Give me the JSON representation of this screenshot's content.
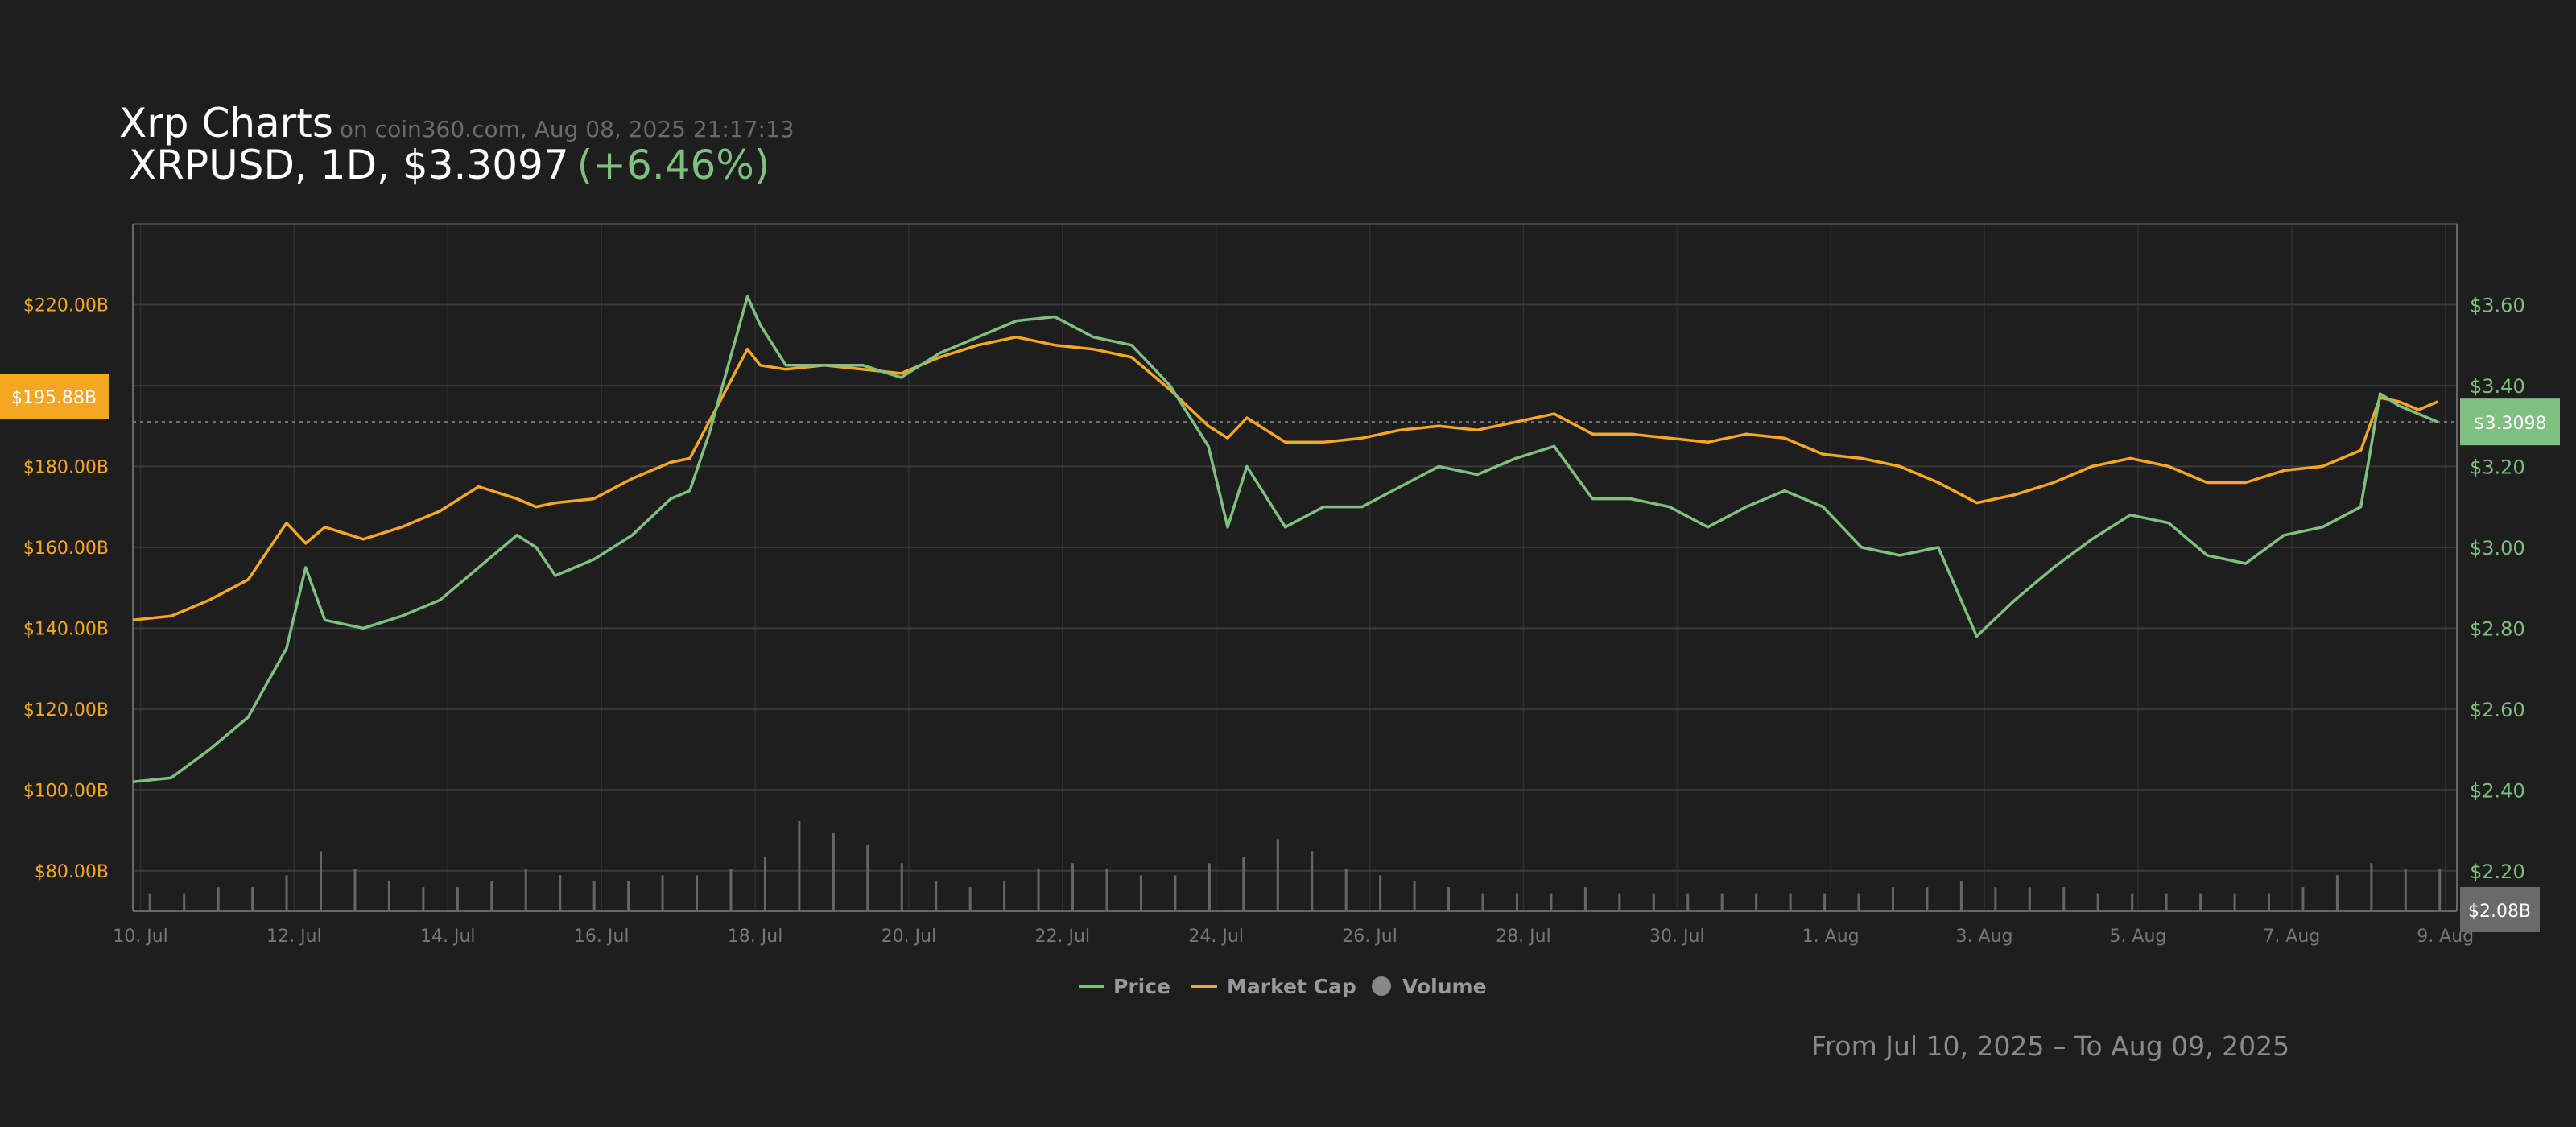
{
  "header": {
    "title": "Xrp Charts",
    "source": "on coin360.com, Aug 08, 2025 21:17:13",
    "pair_info": "XRPUSD, 1D, $3.3097",
    "change": "(+6.46%)"
  },
  "footer": {
    "range": "From Jul 10, 2025 – To Aug 09, 2025"
  },
  "colors": {
    "background": "#1e1e1e",
    "grid": "#3a3a3a",
    "price": "#7fbf7f",
    "market_cap": "#f5a623",
    "volume": "#666666",
    "axis_text_left": "#f5a623",
    "axis_text_right": "#7fbf7f",
    "axis_text_bottom": "#777777"
  },
  "chart_data": {
    "type": "line",
    "x_ticks": [
      "10. Jul",
      "12. Jul",
      "14. Jul",
      "16. Jul",
      "18. Jul",
      "20. Jul",
      "22. Jul",
      "24. Jul",
      "26. Jul",
      "28. Jul",
      "30. Jul",
      "1. Aug",
      "3. Aug",
      "5. Aug",
      "7. Aug",
      "9. Aug"
    ],
    "x_range": [
      "2025-07-10",
      "2025-08-09"
    ],
    "y_left": {
      "label": "Market Cap",
      "ticks": [
        "$220.00B",
        "$180.00B",
        "$160.00B",
        "$140.00B",
        "$120.00B",
        "$100.00B",
        "$80.00B"
      ],
      "ylim": [
        70,
        240
      ]
    },
    "y_right": {
      "label": "Price",
      "ticks": [
        "$3.60",
        "$3.40",
        "$3.20",
        "$3.00",
        "$2.80",
        "$2.60",
        "$2.40",
        "$2.20"
      ],
      "ylim": [
        2.1,
        3.8
      ]
    },
    "current_market_cap_label": "$195.88B",
    "current_price_label": "$3.3098",
    "current_volume_label": "$2.08B",
    "series": [
      {
        "name": "Price",
        "axis": "right",
        "x": [
          "2025-07-10",
          "2025-07-10T12",
          "2025-07-11",
          "2025-07-11T12",
          "2025-07-12",
          "2025-07-12T06",
          "2025-07-12T12",
          "2025-07-13",
          "2025-07-13T12",
          "2025-07-14",
          "2025-07-14T12",
          "2025-07-15",
          "2025-07-15T06",
          "2025-07-15T12",
          "2025-07-16",
          "2025-07-16T12",
          "2025-07-17",
          "2025-07-17T06",
          "2025-07-17T12",
          "2025-07-18",
          "2025-07-18T04",
          "2025-07-18T12",
          "2025-07-19",
          "2025-07-19T12",
          "2025-07-20",
          "2025-07-20T12",
          "2025-07-21",
          "2025-07-21T12",
          "2025-07-22",
          "2025-07-22T12",
          "2025-07-23",
          "2025-07-23T12",
          "2025-07-24",
          "2025-07-24T06",
          "2025-07-24T12",
          "2025-07-25",
          "2025-07-25T12",
          "2025-07-26",
          "2025-07-26T12",
          "2025-07-27",
          "2025-07-27T12",
          "2025-07-28",
          "2025-07-28T12",
          "2025-07-29",
          "2025-07-29T12",
          "2025-07-30",
          "2025-07-30T12",
          "2025-07-31",
          "2025-07-31T12",
          "2025-08-01",
          "2025-08-01T12",
          "2025-08-02",
          "2025-08-02T12",
          "2025-08-03",
          "2025-08-03T12",
          "2025-08-04",
          "2025-08-04T12",
          "2025-08-05",
          "2025-08-05T12",
          "2025-08-06",
          "2025-08-06T12",
          "2025-08-07",
          "2025-08-07T12",
          "2025-08-08",
          "2025-08-08T06",
          "2025-08-08T12",
          "2025-08-08T18",
          "2025-08-09"
        ],
        "values": [
          2.42,
          2.43,
          2.5,
          2.58,
          2.75,
          2.95,
          2.82,
          2.8,
          2.83,
          2.87,
          2.95,
          3.03,
          3.0,
          2.93,
          2.97,
          3.03,
          3.12,
          3.14,
          3.28,
          3.62,
          3.55,
          3.45,
          3.45,
          3.45,
          3.42,
          3.48,
          3.52,
          3.56,
          3.57,
          3.52,
          3.5,
          3.4,
          3.25,
          3.05,
          3.2,
          3.05,
          3.1,
          3.1,
          3.15,
          3.2,
          3.18,
          3.22,
          3.25,
          3.12,
          3.12,
          3.1,
          3.05,
          3.1,
          3.14,
          3.1,
          3.0,
          2.98,
          3.0,
          2.78,
          2.87,
          2.95,
          3.02,
          3.08,
          3.06,
          2.98,
          2.96,
          3.03,
          3.05,
          3.1,
          3.38,
          3.35,
          3.33,
          3.31
        ]
      },
      {
        "name": "Market Cap",
        "axis": "left",
        "x": [
          "2025-07-10",
          "2025-07-10T12",
          "2025-07-11",
          "2025-07-11T12",
          "2025-07-12",
          "2025-07-12T06",
          "2025-07-12T12",
          "2025-07-13",
          "2025-07-13T12",
          "2025-07-14",
          "2025-07-14T12",
          "2025-07-15",
          "2025-07-15T06",
          "2025-07-15T12",
          "2025-07-16",
          "2025-07-16T12",
          "2025-07-17",
          "2025-07-17T06",
          "2025-07-17T12",
          "2025-07-18",
          "2025-07-18T04",
          "2025-07-18T12",
          "2025-07-19",
          "2025-07-19T12",
          "2025-07-20",
          "2025-07-20T12",
          "2025-07-21",
          "2025-07-21T12",
          "2025-07-22",
          "2025-07-22T12",
          "2025-07-23",
          "2025-07-23T12",
          "2025-07-24",
          "2025-07-24T06",
          "2025-07-24T12",
          "2025-07-25",
          "2025-07-25T12",
          "2025-07-26",
          "2025-07-26T12",
          "2025-07-27",
          "2025-07-27T12",
          "2025-07-28",
          "2025-07-28T12",
          "2025-07-29",
          "2025-07-29T12",
          "2025-07-30",
          "2025-07-30T12",
          "2025-07-31",
          "2025-07-31T12",
          "2025-08-01",
          "2025-08-01T12",
          "2025-08-02",
          "2025-08-02T12",
          "2025-08-03",
          "2025-08-03T12",
          "2025-08-04",
          "2025-08-04T12",
          "2025-08-05",
          "2025-08-05T12",
          "2025-08-06",
          "2025-08-06T12",
          "2025-08-07",
          "2025-08-07T12",
          "2025-08-08",
          "2025-08-08T06",
          "2025-08-08T12",
          "2025-08-08T18",
          "2025-08-09"
        ],
        "values": [
          142,
          143,
          147,
          152,
          166,
          161,
          165,
          162,
          165,
          169,
          175,
          172,
          170,
          171,
          172,
          177,
          181,
          182,
          191,
          209,
          205,
          204,
          205,
          204,
          203,
          207,
          210,
          212,
          210,
          209,
          207,
          199,
          190,
          187,
          192,
          186,
          186,
          187,
          189,
          190,
          189,
          191,
          193,
          188,
          188,
          187,
          186,
          188,
          187,
          183,
          182,
          180,
          176,
          171,
          173,
          176,
          180,
          182,
          180,
          176,
          176,
          179,
          180,
          184,
          197,
          196,
          194,
          196
        ]
      },
      {
        "name": "Volume",
        "axis": "volume",
        "values": [
          3,
          3,
          4,
          4,
          6,
          10,
          7,
          5,
          4,
          4,
          5,
          7,
          6,
          5,
          5,
          6,
          6,
          7,
          9,
          15,
          13,
          11,
          8,
          5,
          4,
          5,
          7,
          8,
          7,
          6,
          6,
          8,
          9,
          12,
          10,
          7,
          6,
          5,
          4,
          3,
          3,
          3,
          4,
          3,
          3,
          3,
          3,
          3,
          3,
          3,
          3,
          4,
          4,
          5,
          4,
          4,
          4,
          3,
          3,
          3,
          3,
          3,
          3,
          4,
          6,
          8,
          7,
          7
        ]
      }
    ],
    "legend": {
      "placement": "bottom-center",
      "entries": [
        "Price",
        "Market Cap",
        "Volume"
      ]
    }
  }
}
